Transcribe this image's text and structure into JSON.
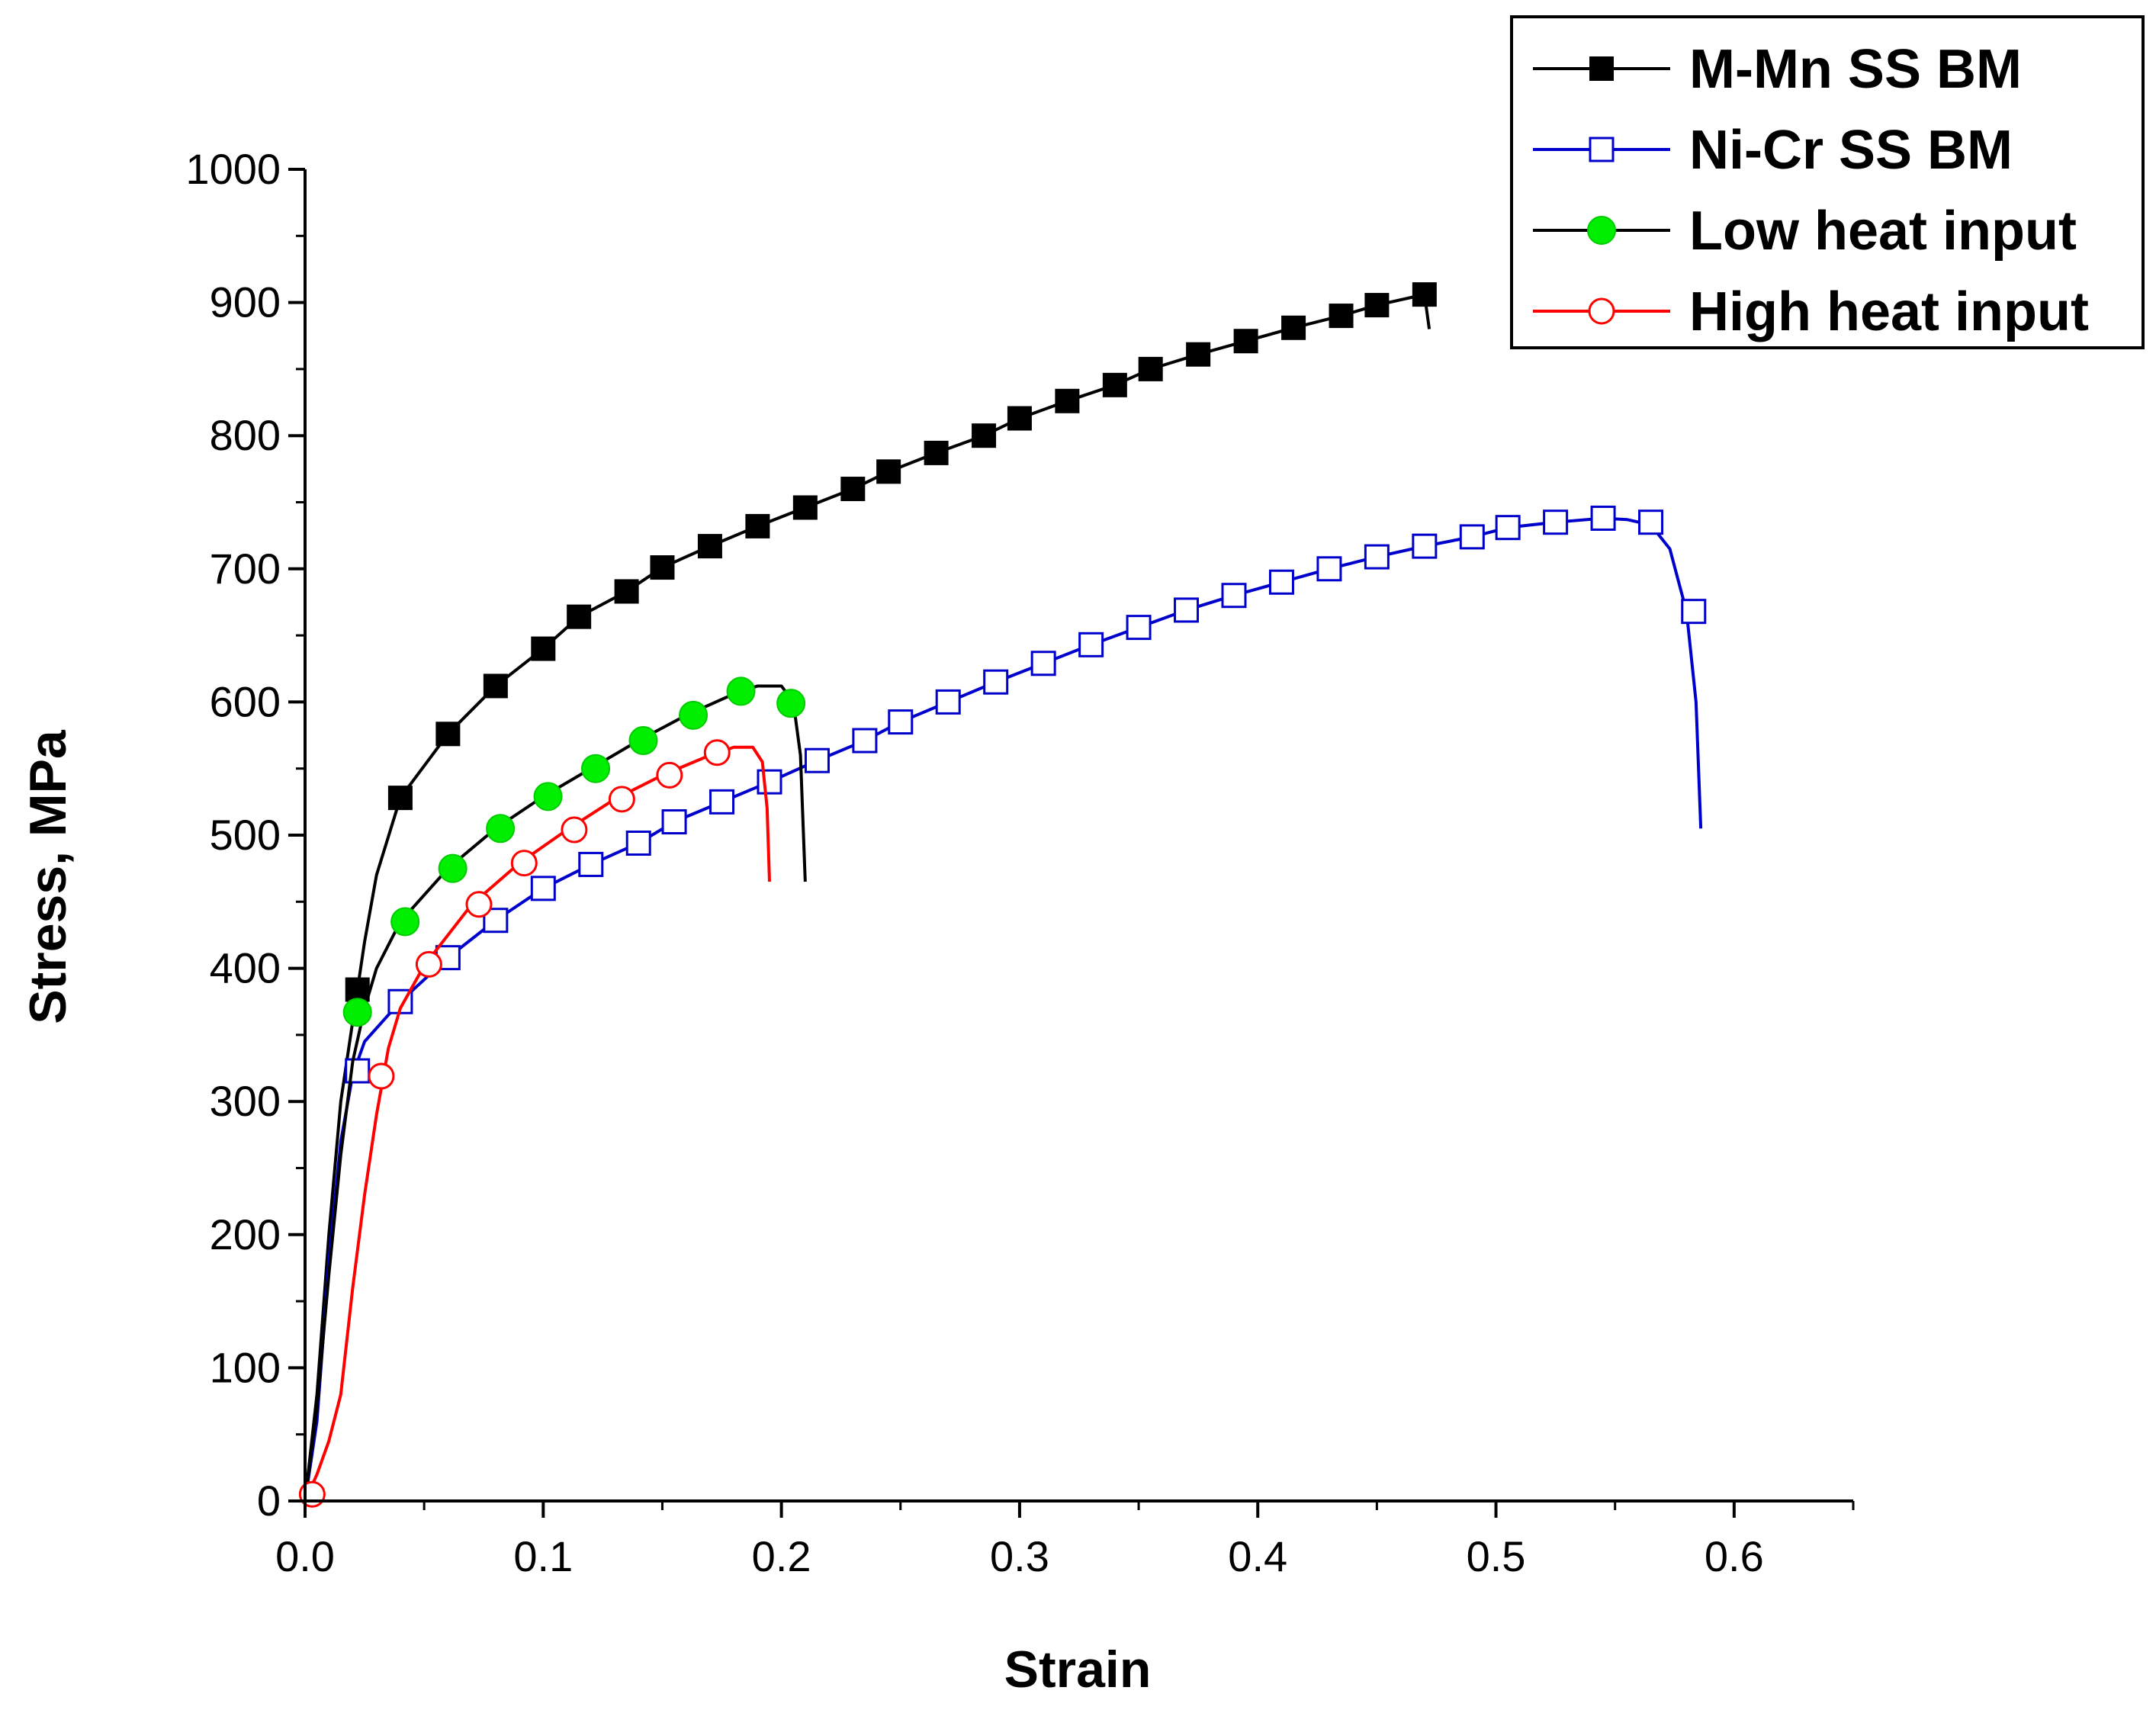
{
  "chart_data": {
    "type": "line",
    "title": "",
    "xlabel": "Strain",
    "ylabel": "Stress, MPa",
    "xlim": [
      0,
      0.65
    ],
    "ylim": [
      0,
      1000
    ],
    "xticks": [
      0.0,
      0.1,
      0.2,
      0.3,
      0.4,
      0.5,
      0.6
    ],
    "xtick_labels": [
      "0.0",
      "0.1",
      "0.2",
      "0.3",
      "0.4",
      "0.5",
      "0.6"
    ],
    "yticks": [
      0,
      100,
      200,
      300,
      400,
      500,
      600,
      700,
      800,
      900,
      1000
    ],
    "ytick_labels": [
      "0",
      "100",
      "200",
      "300",
      "400",
      "500",
      "600",
      "700",
      "800",
      "900",
      "1000"
    ],
    "grid": false,
    "legend_position": "top-right",
    "series": [
      {
        "name": "M-Mn SS BM",
        "color": "#000000",
        "marker": "square-filled",
        "curve": [
          [
            0,
            0
          ],
          [
            0.005,
            80
          ],
          [
            0.01,
            200
          ],
          [
            0.015,
            300
          ],
          [
            0.02,
            360
          ],
          [
            0.025,
            420
          ],
          [
            0.03,
            470
          ],
          [
            0.04,
            528
          ],
          [
            0.06,
            576
          ],
          [
            0.08,
            612
          ],
          [
            0.1,
            640
          ],
          [
            0.115,
            664
          ],
          [
            0.135,
            683
          ],
          [
            0.15,
            701
          ],
          [
            0.17,
            717
          ],
          [
            0.19,
            732
          ],
          [
            0.21,
            746
          ],
          [
            0.23,
            760
          ],
          [
            0.245,
            773
          ],
          [
            0.265,
            787
          ],
          [
            0.285,
            800
          ],
          [
            0.3,
            813
          ],
          [
            0.32,
            826
          ],
          [
            0.34,
            838
          ],
          [
            0.355,
            850
          ],
          [
            0.375,
            861
          ],
          [
            0.395,
            871
          ],
          [
            0.415,
            881
          ],
          [
            0.435,
            890
          ],
          [
            0.45,
            898
          ],
          [
            0.47,
            906
          ],
          [
            0.472,
            880
          ]
        ],
        "markers": [
          [
            0.022,
            384
          ],
          [
            0.04,
            528
          ],
          [
            0.06,
            576
          ],
          [
            0.08,
            612
          ],
          [
            0.1,
            640
          ],
          [
            0.115,
            664
          ],
          [
            0.135,
            683
          ],
          [
            0.15,
            701
          ],
          [
            0.17,
            717
          ],
          [
            0.19,
            732
          ],
          [
            0.21,
            746
          ],
          [
            0.23,
            760
          ],
          [
            0.245,
            773
          ],
          [
            0.265,
            787
          ],
          [
            0.285,
            800
          ],
          [
            0.3,
            813
          ],
          [
            0.32,
            826
          ],
          [
            0.34,
            838
          ],
          [
            0.355,
            850
          ],
          [
            0.375,
            861
          ],
          [
            0.395,
            871
          ],
          [
            0.415,
            881
          ],
          [
            0.435,
            890
          ],
          [
            0.45,
            898
          ],
          [
            0.47,
            906
          ]
        ]
      },
      {
        "name": "Ni-Cr SS BM",
        "color": "#0000cc",
        "marker": "square-open",
        "curve": [
          [
            0,
            0
          ],
          [
            0.005,
            60
          ],
          [
            0.01,
            180
          ],
          [
            0.015,
            270
          ],
          [
            0.02,
            320
          ],
          [
            0.025,
            345
          ],
          [
            0.04,
            375
          ],
          [
            0.06,
            408
          ],
          [
            0.08,
            436
          ],
          [
            0.1,
            460
          ],
          [
            0.12,
            478
          ],
          [
            0.14,
            494
          ],
          [
            0.155,
            510
          ],
          [
            0.175,
            525
          ],
          [
            0.195,
            540
          ],
          [
            0.215,
            556
          ],
          [
            0.235,
            571
          ],
          [
            0.25,
            585
          ],
          [
            0.27,
            600
          ],
          [
            0.29,
            615
          ],
          [
            0.31,
            629
          ],
          [
            0.33,
            643
          ],
          [
            0.35,
            656
          ],
          [
            0.37,
            669
          ],
          [
            0.39,
            680
          ],
          [
            0.41,
            690
          ],
          [
            0.43,
            700
          ],
          [
            0.45,
            709
          ],
          [
            0.47,
            717
          ],
          [
            0.49,
            724
          ],
          [
            0.505,
            731
          ],
          [
            0.525,
            735
          ],
          [
            0.545,
            738
          ],
          [
            0.555,
            737
          ],
          [
            0.565,
            733
          ],
          [
            0.573,
            715
          ],
          [
            0.58,
            668
          ],
          [
            0.584,
            600
          ],
          [
            0.586,
            505
          ]
        ],
        "markers": [
          [
            0.022,
            323
          ],
          [
            0.04,
            375
          ],
          [
            0.06,
            408
          ],
          [
            0.08,
            436
          ],
          [
            0.1,
            460
          ],
          [
            0.12,
            478
          ],
          [
            0.14,
            494
          ],
          [
            0.155,
            510
          ],
          [
            0.175,
            525
          ],
          [
            0.195,
            540
          ],
          [
            0.215,
            556
          ],
          [
            0.235,
            571
          ],
          [
            0.25,
            585
          ],
          [
            0.27,
            600
          ],
          [
            0.29,
            615
          ],
          [
            0.31,
            629
          ],
          [
            0.33,
            643
          ],
          [
            0.35,
            656
          ],
          [
            0.37,
            669
          ],
          [
            0.39,
            680
          ],
          [
            0.41,
            690
          ],
          [
            0.43,
            700
          ],
          [
            0.45,
            709
          ],
          [
            0.47,
            717
          ],
          [
            0.49,
            724
          ],
          [
            0.505,
            731
          ],
          [
            0.525,
            735
          ],
          [
            0.545,
            738
          ],
          [
            0.565,
            735
          ],
          [
            0.583,
            668
          ]
        ]
      },
      {
        "name": "Low heat input",
        "color": "#000000",
        "marker": "circle-green",
        "curve": [
          [
            0,
            0
          ],
          [
            0.005,
            70
          ],
          [
            0.01,
            170
          ],
          [
            0.015,
            260
          ],
          [
            0.02,
            330
          ],
          [
            0.025,
            370
          ],
          [
            0.03,
            400
          ],
          [
            0.04,
            435
          ],
          [
            0.06,
            475
          ],
          [
            0.08,
            505
          ],
          [
            0.1,
            529
          ],
          [
            0.12,
            550
          ],
          [
            0.14,
            571
          ],
          [
            0.16,
            590
          ],
          [
            0.18,
            606
          ],
          [
            0.19,
            612
          ],
          [
            0.2,
            612
          ],
          [
            0.205,
            600
          ],
          [
            0.208,
            560
          ],
          [
            0.21,
            465
          ]
        ],
        "markers": [
          [
            0.022,
            367
          ],
          [
            0.042,
            435
          ],
          [
            0.062,
            475
          ],
          [
            0.082,
            505
          ],
          [
            0.102,
            529
          ],
          [
            0.122,
            550
          ],
          [
            0.142,
            571
          ],
          [
            0.163,
            590
          ],
          [
            0.183,
            608
          ],
          [
            0.204,
            599
          ]
        ]
      },
      {
        "name": "High heat input",
        "color": "#ff0000",
        "marker": "circle-open",
        "curve": [
          [
            0,
            0
          ],
          [
            0.005,
            20
          ],
          [
            0.01,
            45
          ],
          [
            0.015,
            80
          ],
          [
            0.02,
            160
          ],
          [
            0.025,
            230
          ],
          [
            0.03,
            290
          ],
          [
            0.035,
            340
          ],
          [
            0.04,
            370
          ],
          [
            0.05,
            402
          ],
          [
            0.07,
            448
          ],
          [
            0.09,
            479
          ],
          [
            0.11,
            504
          ],
          [
            0.13,
            527
          ],
          [
            0.15,
            545
          ],
          [
            0.17,
            560
          ],
          [
            0.18,
            566
          ],
          [
            0.188,
            566
          ],
          [
            0.192,
            555
          ],
          [
            0.194,
            520
          ],
          [
            0.195,
            465
          ]
        ],
        "markers": [
          [
            0.003,
            5
          ],
          [
            0.032,
            319
          ],
          [
            0.052,
            403
          ],
          [
            0.073,
            448
          ],
          [
            0.092,
            479
          ],
          [
            0.113,
            504
          ],
          [
            0.133,
            527
          ],
          [
            0.153,
            545
          ],
          [
            0.173,
            562
          ]
        ]
      }
    ]
  }
}
